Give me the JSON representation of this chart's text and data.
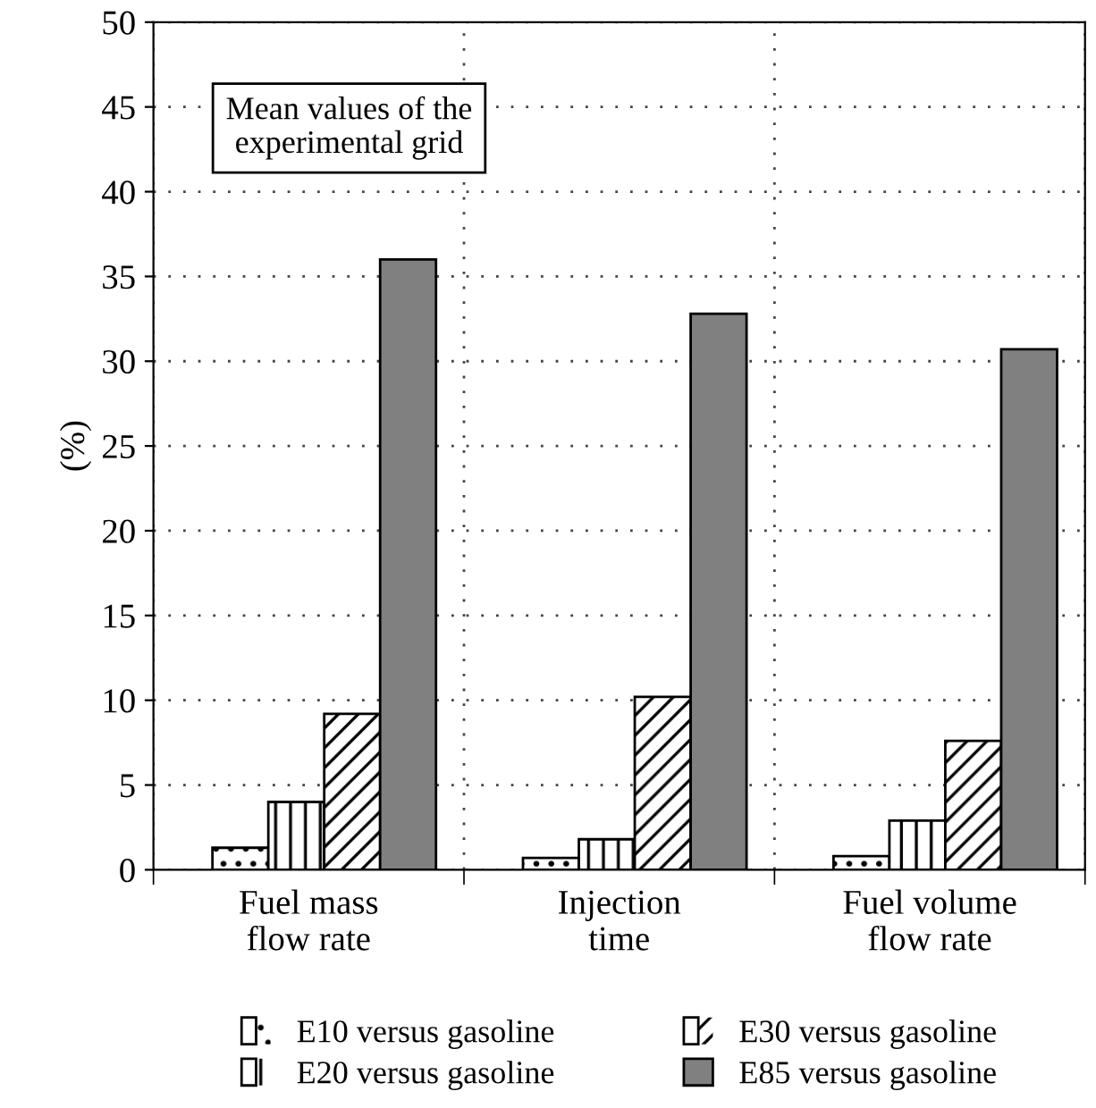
{
  "chart_data": {
    "type": "bar",
    "ylabel": "(%)",
    "categories": [
      "Fuel mass\nflow rate",
      "Injection\ntime",
      "Fuel volume\nflow rate"
    ],
    "series": [
      {
        "name": "E10 versus gasoline",
        "color": "#ffffff",
        "values": [
          1.3,
          0.7,
          0.8
        ]
      },
      {
        "name": "E20 versus gasoline",
        "color": "#ffffff",
        "values": [
          4.0,
          1.8,
          2.9
        ]
      },
      {
        "name": "E30 versus gasoline",
        "color": "#ffffff",
        "values": [
          9.2,
          10.2,
          7.6
        ]
      },
      {
        "name": "E85 versus gasoline",
        "color": "#808080",
        "values": [
          36.0,
          32.8,
          30.7
        ]
      }
    ],
    "ylim": [
      0,
      50
    ],
    "yticks": [
      0,
      5,
      10,
      15,
      20,
      25,
      30,
      35,
      40,
      45,
      50
    ],
    "annotations": [
      "Mean values of the\nexperimental grid"
    ],
    "grid": true,
    "legend": "bottom"
  }
}
